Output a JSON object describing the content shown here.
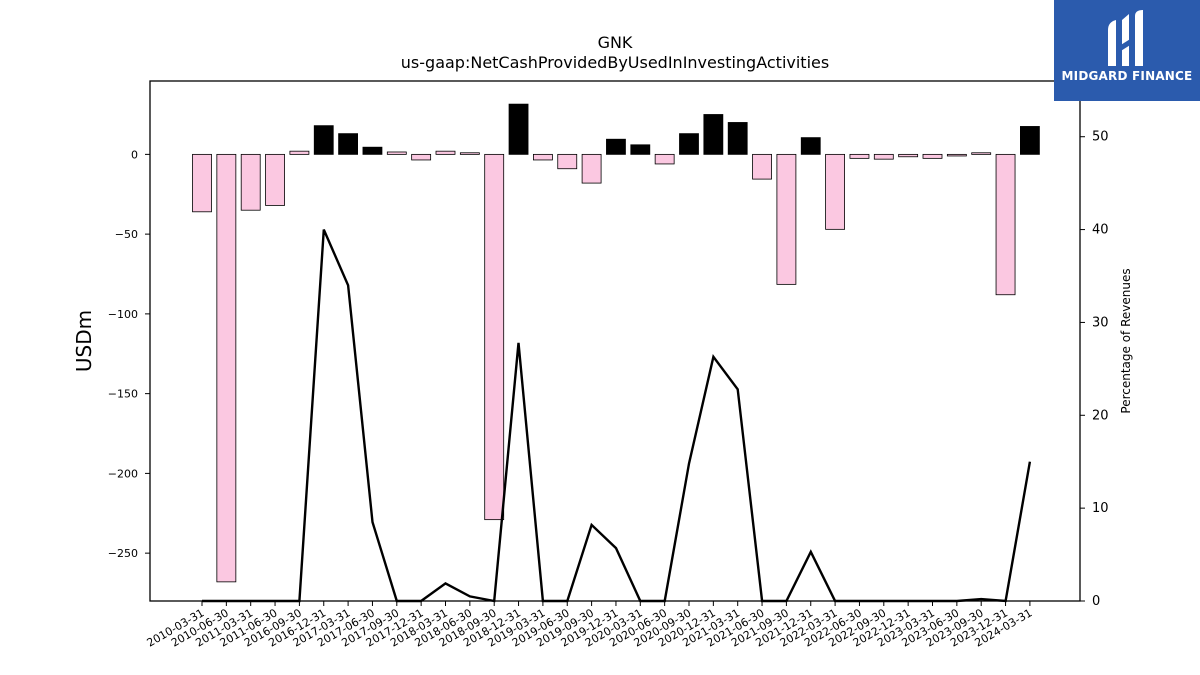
{
  "chart_data": {
    "type": "bar+line",
    "title": "GNK",
    "subtitle": "us-gaap:NetCashProvidedByUsedInInvestingActivities",
    "ylabel": "USDm",
    "y2label": "Percentage of Revenues",
    "ylim": [
      -280,
      46
    ],
    "y2lim": [
      0,
      56
    ],
    "yticks": [
      0,
      -50,
      -100,
      -150,
      -200,
      -250
    ],
    "y2ticks": [
      0,
      10,
      20,
      30,
      40,
      50
    ],
    "categories": [
      "2010-03-31",
      "2010-06-30",
      "2011-03-31",
      "2011-06-30",
      "2016-09-30",
      "2016-12-31",
      "2017-03-31",
      "2017-06-30",
      "2017-09-30",
      "2017-12-31",
      "2018-03-31",
      "2018-06-30",
      "2018-09-30",
      "2018-12-31",
      "2019-03-31",
      "2019-06-30",
      "2019-09-30",
      "2019-12-31",
      "2020-03-31",
      "2020-06-30",
      "2020-09-30",
      "2020-12-31",
      "2021-03-31",
      "2021-06-30",
      "2021-09-30",
      "2021-12-31",
      "2022-03-31",
      "2022-06-30",
      "2022-09-30",
      "2022-12-31",
      "2023-03-31",
      "2023-06-30",
      "2023-09-30",
      "2023-12-31",
      "2024-03-31"
    ],
    "series": [
      {
        "kind": "bar",
        "values": [
          -36,
          -268,
          -35,
          -32,
          2,
          18,
          13,
          4.5,
          1.5,
          -3.5,
          2,
          1,
          -229,
          31.5,
          -3.5,
          -9,
          -18,
          9.5,
          6,
          -6,
          13,
          25,
          20,
          -15.5,
          -81.5,
          10.5,
          -47,
          -2.5,
          -3,
          -1.5,
          -2.5,
          -1,
          1,
          -88,
          17.5
        ]
      },
      {
        "kind": "line",
        "axis": "right",
        "values": [
          0,
          0,
          0,
          0,
          0,
          40,
          34,
          8.5,
          0,
          0,
          1.9,
          0.5,
          0,
          27.8,
          0,
          0,
          8.2,
          5.7,
          0,
          0,
          14.8,
          26.3,
          22.8,
          0,
          0,
          5.3,
          0,
          0,
          0,
          0,
          0,
          0,
          0.2,
          0,
          15
        ]
      }
    ]
  },
  "logo": {
    "text": "MIDGARD FINANCE"
  }
}
